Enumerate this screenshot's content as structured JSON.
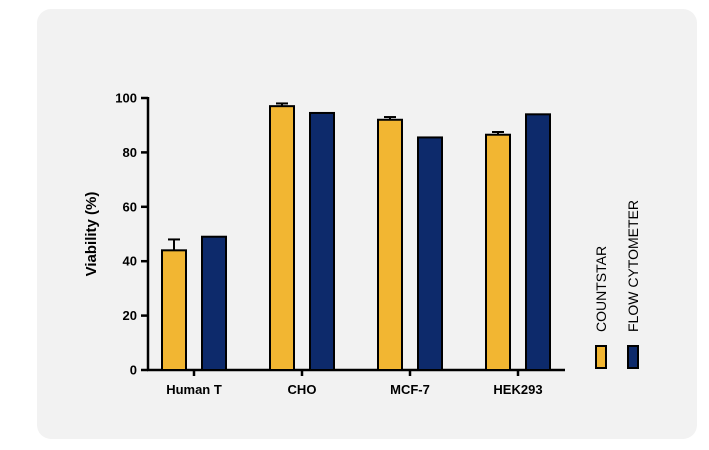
{
  "chart_data": {
    "type": "bar",
    "categories": [
      "Human T",
      "CHO",
      "MCF-7",
      "HEK293"
    ],
    "series": [
      {
        "name": "COUNTSTAR",
        "color": "#f2b632",
        "values": [
          44,
          97,
          92,
          86.5
        ],
        "errors": [
          4,
          1,
          1,
          1
        ]
      },
      {
        "name": "FLOW CYTOMETER",
        "color": "#0d2a6b",
        "values": [
          49,
          94.5,
          85.5,
          94
        ],
        "errors": [
          0,
          0,
          0,
          0
        ]
      }
    ],
    "xlabel": "",
    "ylabel": "Viability (%)",
    "ylim": [
      0,
      100
    ],
    "yticks": [
      0,
      20,
      40,
      60,
      80,
      100
    ],
    "legend_position": "right, vertical",
    "grid": false
  }
}
